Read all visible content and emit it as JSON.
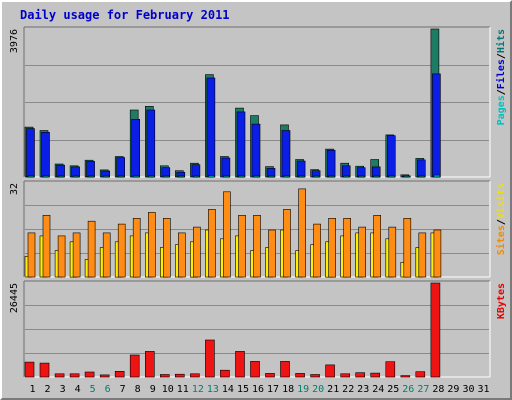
{
  "chart_data": {
    "type": "bar",
    "title": "Daily usage for February 2011",
    "categories": [
      "1",
      "2",
      "3",
      "4",
      "5",
      "6",
      "7",
      "8",
      "9",
      "10",
      "11",
      "12",
      "13",
      "14",
      "15",
      "16",
      "17",
      "18",
      "19",
      "20",
      "21",
      "22",
      "23",
      "24",
      "25",
      "26",
      "27",
      "28",
      "29",
      "30",
      "31"
    ],
    "weekend_days": [
      "5",
      "6",
      "12",
      "13",
      "19",
      "20",
      "26",
      "27"
    ],
    "panels": [
      {
        "name": "hits-files-pages",
        "ymax_label": "3976",
        "ylim": [
          0,
          3976
        ],
        "legend": [
          "Pages",
          "/",
          "Files",
          "/",
          "Hits"
        ],
        "legend_colors": [
          "#00c0c0",
          "#000000",
          "#0000d0",
          "#000000",
          "#007878"
        ],
        "series": [
          {
            "name": "Hits",
            "color": "#1e7b64",
            "values": [
              1340,
              1250,
              350,
              300,
              450,
              190,
              550,
              1800,
              1900,
              300,
              170,
              370,
              2750,
              550,
              1850,
              1650,
              280,
              1400,
              470,
              200,
              750,
              370,
              290,
              470,
              1130,
              60,
              500,
              3976,
              0,
              0,
              0
            ]
          },
          {
            "name": "Files",
            "color": "#0a1ee6",
            "values": [
              1300,
              1200,
              320,
              270,
              420,
              160,
              520,
              1550,
              1800,
              250,
              130,
              330,
              2660,
              510,
              1750,
              1420,
              230,
              1250,
              430,
              170,
              720,
              300,
              250,
              270,
              1110,
              30,
              460,
              2770,
              0,
              0,
              0
            ]
          },
          {
            "name": "Pages",
            "color": "#00c8c8",
            "values": [
              30,
              30,
              20,
              20,
              20,
              10,
              20,
              30,
              30,
              20,
              10,
              20,
              40,
              30,
              30,
              30,
              10,
              30,
              20,
              10,
              20,
              20,
              20,
              20,
              30,
              5,
              20,
              50,
              0,
              0,
              0
            ]
          }
        ]
      },
      {
        "name": "visits-sites",
        "ymax_label": "32",
        "ylim": [
          0,
          32
        ],
        "legend": [
          "Sites",
          "/",
          "Visits"
        ],
        "legend_colors": [
          "#f08c00",
          "#000000",
          "#f0e000"
        ],
        "series": [
          {
            "name": "Visits",
            "color": "#ffee00",
            "values": [
              7,
              14,
              9,
              12,
              6,
              10,
              12,
              14,
              15,
              10,
              11,
              12,
              16,
              13,
              14,
              9,
              10,
              16,
              9,
              11,
              12,
              14,
              15,
              15,
              13,
              5,
              10,
              15,
              0,
              0,
              0
            ]
          },
          {
            "name": "Sites",
            "color": "#ff8c14",
            "values": [
              15,
              21,
              14,
              15,
              19,
              15,
              18,
              20,
              22,
              20,
              15,
              17,
              23,
              29,
              21,
              21,
              16,
              23,
              30,
              18,
              20,
              20,
              17,
              21,
              17,
              20,
              15,
              16,
              0,
              0,
              0
            ]
          }
        ]
      },
      {
        "name": "kbytes",
        "ymax_label": "26445",
        "ylim": [
          0,
          26445
        ],
        "legend": [
          "KBytes"
        ],
        "legend_colors": [
          "#e80000"
        ],
        "series": [
          {
            "name": "KBytes",
            "color": "#ee1414",
            "values": [
              4200,
              3900,
              900,
              900,
              1400,
              600,
              1600,
              6200,
              7200,
              700,
              800,
              900,
              10400,
              1900,
              7200,
              4400,
              1000,
              4400,
              1000,
              700,
              3400,
              900,
              1200,
              1100,
              4300,
              400,
              1500,
              26445,
              0,
              0,
              0
            ]
          }
        ]
      }
    ]
  }
}
